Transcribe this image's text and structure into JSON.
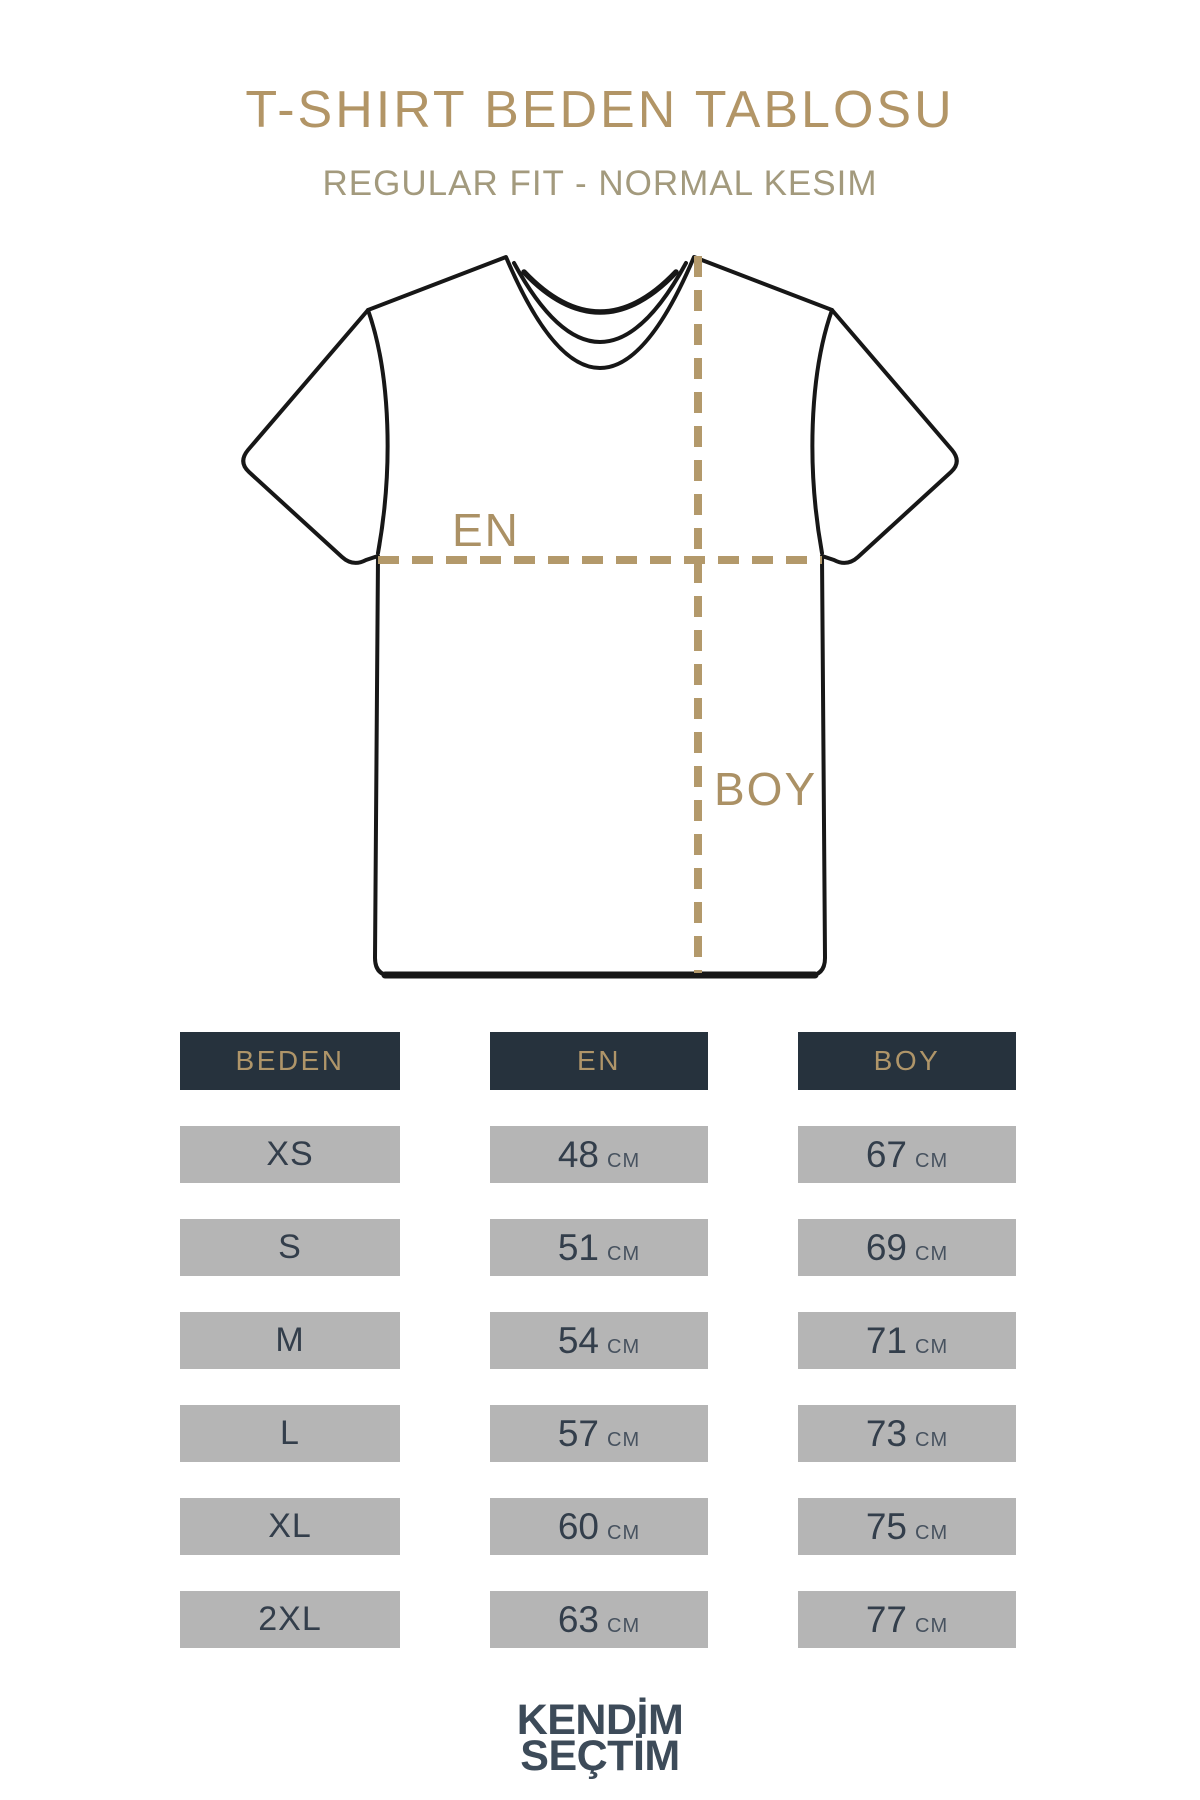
{
  "header": {
    "title": "T-SHIRT BEDEN TABLOSU",
    "subtitle": "REGULAR FIT - NORMAL KESIM"
  },
  "diagram": {
    "garment": "t-shirt-front-outline",
    "width_label": "EN",
    "length_label": "BOY"
  },
  "table": {
    "columns": [
      "BEDEN",
      "EN",
      "BOY"
    ],
    "unit": "CM",
    "rows": [
      {
        "size": "XS",
        "en": "48",
        "boy": "67"
      },
      {
        "size": "S",
        "en": "51",
        "boy": "69"
      },
      {
        "size": "M",
        "en": "54",
        "boy": "71"
      },
      {
        "size": "L",
        "en": "57",
        "boy": "73"
      },
      {
        "size": "XL",
        "en": "60",
        "boy": "75"
      },
      {
        "size": "2XL",
        "en": "63",
        "boy": "77"
      }
    ]
  },
  "footer": {
    "brand_line1": "KENDİM",
    "brand_line2": "SEÇTİM"
  },
  "colors": {
    "accent_gold": "#b29566",
    "dash_gold": "#b3996b",
    "header_navy": "#26323d",
    "row_gray": "#b5b5b5",
    "cell_text_navy": "#333e4b",
    "brand_navy": "#3d4b59",
    "outline_black": "#171717"
  }
}
